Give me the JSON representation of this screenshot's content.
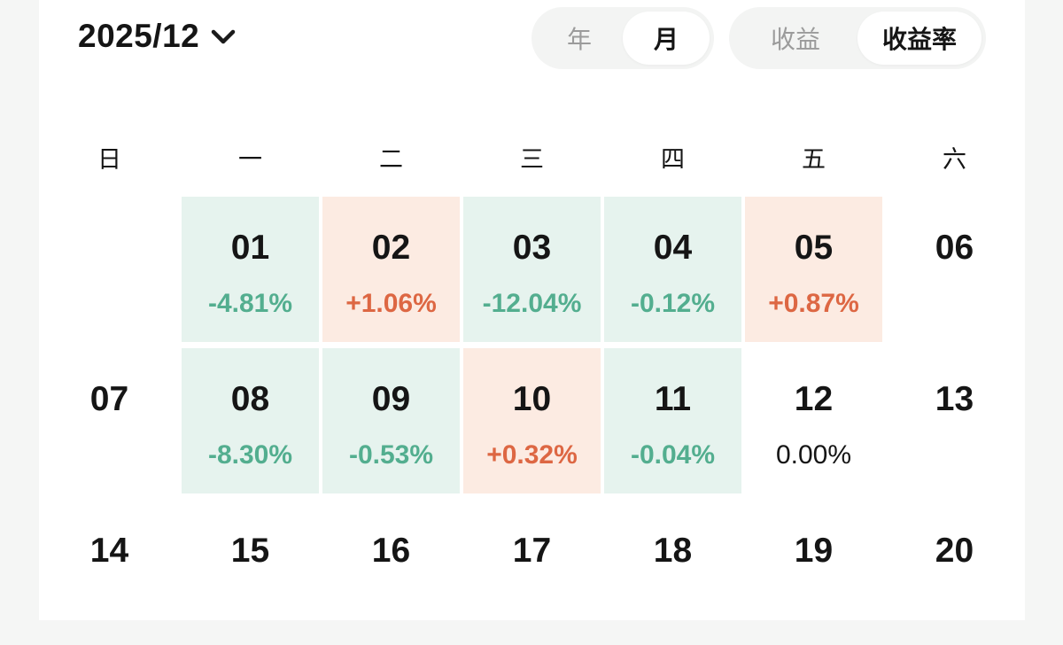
{
  "colors": {
    "page_bg": "#f5f6f5",
    "card_bg": "#ffffff",
    "day_text": "#151515",
    "inactive_text": "#9b9b9b",
    "toggle_bg": "#f3f4f3",
    "green_bg": "#e6f3ee",
    "green_text": "#53ae8f",
    "orange_bg": "#fcebe2",
    "orange_text": "#dd6743"
  },
  "header": {
    "title": "2025/12",
    "chevron_icon": "chevron-down",
    "toggles": [
      {
        "id": "period",
        "options": [
          {
            "label": "年",
            "selected": false
          },
          {
            "label": "月",
            "selected": true
          }
        ]
      },
      {
        "id": "metric",
        "options": [
          {
            "label": "收益",
            "selected": false
          },
          {
            "label": "收益率",
            "selected": true
          }
        ]
      }
    ]
  },
  "calendar": {
    "weekdays": [
      "日",
      "一",
      "二",
      "三",
      "四",
      "五",
      "六"
    ],
    "weeks": [
      [
        {
          "day": "",
          "value": "",
          "type": "empty"
        },
        {
          "day": "01",
          "value": "-4.81%",
          "type": "neg"
        },
        {
          "day": "02",
          "value": "+1.06%",
          "type": "pos"
        },
        {
          "day": "03",
          "value": "-12.04%",
          "type": "neg"
        },
        {
          "day": "04",
          "value": "-0.12%",
          "type": "neg"
        },
        {
          "day": "05",
          "value": "+0.87%",
          "type": "pos"
        },
        {
          "day": "06",
          "value": "",
          "type": "plain"
        }
      ],
      [
        {
          "day": "07",
          "value": "",
          "type": "plain"
        },
        {
          "day": "08",
          "value": "-8.30%",
          "type": "neg"
        },
        {
          "day": "09",
          "value": "-0.53%",
          "type": "neg"
        },
        {
          "day": "10",
          "value": "+0.32%",
          "type": "pos"
        },
        {
          "day": "11",
          "value": "-0.04%",
          "type": "neg"
        },
        {
          "day": "12",
          "value": "0.00%",
          "type": "zero"
        },
        {
          "day": "13",
          "value": "",
          "type": "plain"
        }
      ],
      [
        {
          "day": "14",
          "value": "",
          "type": "plain"
        },
        {
          "day": "15",
          "value": "",
          "type": "plain"
        },
        {
          "day": "16",
          "value": "",
          "type": "plain"
        },
        {
          "day": "17",
          "value": "",
          "type": "plain"
        },
        {
          "day": "18",
          "value": "",
          "type": "plain"
        },
        {
          "day": "19",
          "value": "",
          "type": "plain"
        },
        {
          "day": "20",
          "value": "",
          "type": "plain"
        }
      ]
    ]
  }
}
